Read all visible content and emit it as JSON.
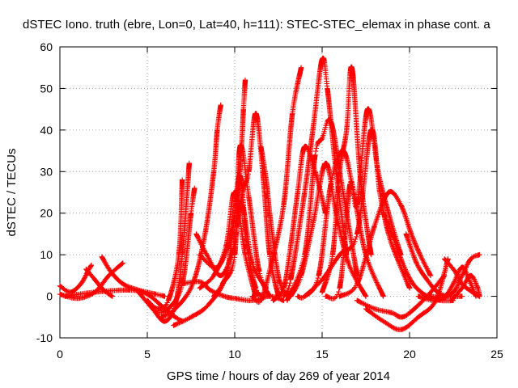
{
  "chart_data": {
    "type": "scatter",
    "title": "dSTEC Iono. truth (ebre, Lon=0, Lat=40, h=111): STEC-STEC_elemax in phase cont. a",
    "xlabel": "GPS time / hours of day 269 of year 2014",
    "ylabel": "dSTEC  / TECUs",
    "xlim": [
      0,
      25
    ],
    "ylim": [
      -10,
      60
    ],
    "xticks": [
      "0",
      "5",
      "10",
      "15",
      "20",
      "25"
    ],
    "yticks": [
      "-10",
      "0",
      "10",
      "20",
      "30",
      "40",
      "50",
      "60"
    ],
    "grid": true,
    "marker": "+",
    "color": "#ff0000",
    "series": [
      {
        "x": [
          0.0,
          0.6,
          1.2,
          1.6,
          1.8
        ],
        "y": [
          2.5,
          1,
          3,
          6,
          7.5
        ]
      },
      {
        "x": [
          0.0,
          1.0,
          2.0,
          2.8,
          3.6
        ],
        "y": [
          0.5,
          -0.5,
          1,
          5,
          8
        ]
      },
      {
        "x": [
          1.5,
          2.0,
          2.5,
          3.0
        ],
        "y": [
          6.5,
          4,
          1.5,
          0
        ]
      },
      {
        "x": [
          2.4,
          2.9,
          3.6,
          4.5,
          5.5,
          6.0
        ],
        "y": [
          9.5,
          6,
          3,
          1.5,
          0.5,
          0
        ]
      },
      {
        "x": [
          0.3,
          2.0,
          4.0,
          5.0,
          6.0,
          6.6,
          7.0
        ],
        "y": [
          0,
          1,
          1.5,
          0.5,
          -3,
          -5,
          -6
        ]
      },
      {
        "x": [
          4.5,
          5.3,
          6.0,
          6.6,
          7.0,
          7.4
        ],
        "y": [
          1,
          -3,
          -6,
          -2,
          10,
          32
        ]
      },
      {
        "x": [
          5.0,
          5.6,
          6.2,
          6.8,
          7.0
        ],
        "y": [
          -1,
          -3,
          -1,
          10,
          28
        ]
      },
      {
        "x": [
          5.5,
          6.2,
          7.0,
          7.5,
          7.7
        ],
        "y": [
          -4,
          -3,
          3,
          20,
          26
        ]
      },
      {
        "x": [
          5.8,
          6.6,
          7.6,
          8.3,
          8.8,
          9.0,
          9.2
        ],
        "y": [
          -5,
          -3,
          3,
          15,
          30,
          40,
          46
        ]
      },
      {
        "x": [
          6.5,
          7.5,
          8.5,
          9.5,
          10.0,
          10.3,
          10.5,
          10.6
        ],
        "y": [
          -7,
          -5,
          -2,
          5,
          20,
          30,
          45,
          52
        ]
      },
      {
        "x": [
          8.0,
          9.0,
          9.8,
          10.3,
          10.7,
          11.2,
          11.6
        ],
        "y": [
          10,
          7,
          15,
          29,
          12,
          2,
          0
        ]
      },
      {
        "x": [
          7.8,
          8.4,
          9.2,
          9.9,
          10.4,
          11.0,
          11.8
        ],
        "y": [
          15,
          10,
          5,
          11,
          22,
          8,
          2
        ]
      },
      {
        "x": [
          8.0,
          8.8,
          9.5,
          10.0,
          10.6,
          11.2
        ],
        "y": [
          2,
          5,
          12,
          25,
          10,
          0
        ]
      },
      {
        "x": [
          7.0,
          8.0,
          8.6,
          9.4,
          10.0,
          11.0,
          12.0,
          12.8
        ],
        "y": [
          3,
          3.5,
          1.5,
          0,
          -0.5,
          -1,
          0,
          -1
        ]
      },
      {
        "x": [
          8.8,
          9.3,
          10.0,
          10.3,
          10.8,
          11.4,
          12.0
        ],
        "y": [
          0,
          3,
          10,
          36,
          24,
          6,
          0
        ]
      },
      {
        "x": [
          10.2,
          10.5,
          10.8,
          11.2,
          11.6,
          12.0,
          12.5
        ],
        "y": [
          20,
          26,
          30,
          44,
          30,
          10,
          0
        ]
      },
      {
        "x": [
          11.5,
          11.8,
          12.0,
          12.3,
          12.6,
          13.0
        ],
        "y": [
          36,
          28,
          20,
          10,
          3,
          0
        ]
      },
      {
        "x": [
          11.0,
          11.5,
          12.1,
          12.8,
          13.3,
          13.8
        ],
        "y": [
          0,
          -1,
          8,
          22,
          44,
          55
        ]
      },
      {
        "x": [
          12.2,
          12.8,
          13.2,
          13.6,
          14.0,
          14.6,
          15.2
        ],
        "y": [
          -1,
          2,
          12,
          25,
          36,
          30,
          20
        ]
      },
      {
        "x": [
          12.8,
          13.2,
          14.0,
          14.5,
          15.0,
          15.3,
          15.8,
          16.4
        ],
        "y": [
          0,
          4,
          25,
          41,
          57,
          50,
          30,
          10
        ]
      },
      {
        "x": [
          13.0,
          14.0,
          14.6,
          15.0,
          15.5,
          16.2,
          17.0
        ],
        "y": [
          -1,
          10,
          34,
          38,
          42,
          25,
          5
        ]
      },
      {
        "x": [
          13.2,
          13.8,
          14.5,
          15.2,
          15.8,
          16.5,
          17.5
        ],
        "y": [
          0,
          5,
          18,
          32,
          20,
          8,
          0
        ]
      },
      {
        "x": [
          13.6,
          14.0,
          14.8,
          15.5,
          16.2,
          16.8,
          17.5,
          18.5
        ],
        "y": [
          0,
          0,
          5,
          27,
          35,
          25,
          10,
          0
        ]
      },
      {
        "x": [
          15.0,
          15.6,
          16.0,
          16.4,
          16.7,
          17.2,
          17.8
        ],
        "y": [
          1,
          10,
          30,
          40,
          55,
          28,
          10
        ]
      },
      {
        "x": [
          15.2,
          16.0,
          16.6,
          17.0,
          17.6,
          18.2,
          18.8,
          19.5
        ],
        "y": [
          0,
          2,
          27,
          22,
          45,
          30,
          20,
          10
        ]
      },
      {
        "x": [
          14.0,
          15.0,
          16.0,
          17.0,
          17.8,
          18.3,
          18.8,
          19.4,
          20.0
        ],
        "y": [
          0,
          4,
          10,
          15,
          40,
          25,
          15,
          8,
          2
        ]
      },
      {
        "x": [
          16.0,
          17.0,
          18.0,
          18.8,
          19.5,
          20.1,
          20.6,
          21.2
        ],
        "y": [
          0,
          3,
          17,
          25,
          22,
          15,
          10,
          5
        ]
      },
      {
        "x": [
          17.0,
          18.0,
          19.0,
          19.5,
          20.0,
          21.0,
          22.0
        ],
        "y": [
          -1,
          -3,
          -4,
          -5,
          -4,
          0,
          5
        ]
      },
      {
        "x": [
          17.5,
          18.5,
          19.5,
          20.5,
          21.5,
          22.2
        ],
        "y": [
          -3,
          -6,
          -8,
          -5,
          -1,
          9
        ]
      },
      {
        "x": [
          18.5,
          19.0,
          19.6,
          20.2,
          21.0,
          21.8,
          22.5
        ],
        "y": [
          20,
          15,
          8,
          3,
          0,
          -1,
          -1
        ]
      },
      {
        "x": [
          19.8,
          20.4,
          21.0,
          21.6,
          22.2,
          23.0
        ],
        "y": [
          15,
          8,
          4,
          1,
          0,
          0
        ]
      },
      {
        "x": [
          20.5,
          21.5,
          22.5,
          23.0,
          23.5,
          24.0
        ],
        "y": [
          0,
          -1,
          1,
          5,
          9,
          10
        ]
      },
      {
        "x": [
          21.2,
          22.0,
          22.5,
          23.0,
          23.4,
          23.8
        ],
        "y": [
          0,
          0,
          3,
          7,
          4,
          0
        ]
      },
      {
        "x": [
          22.0,
          22.6,
          23.0,
          23.6,
          24.0
        ],
        "y": [
          9,
          6,
          3,
          1,
          0
        ]
      },
      {
        "x": [
          22.4,
          23.0,
          23.5,
          23.9,
          24.0
        ],
        "y": [
          -1,
          2,
          5,
          2,
          0
        ]
      }
    ]
  }
}
